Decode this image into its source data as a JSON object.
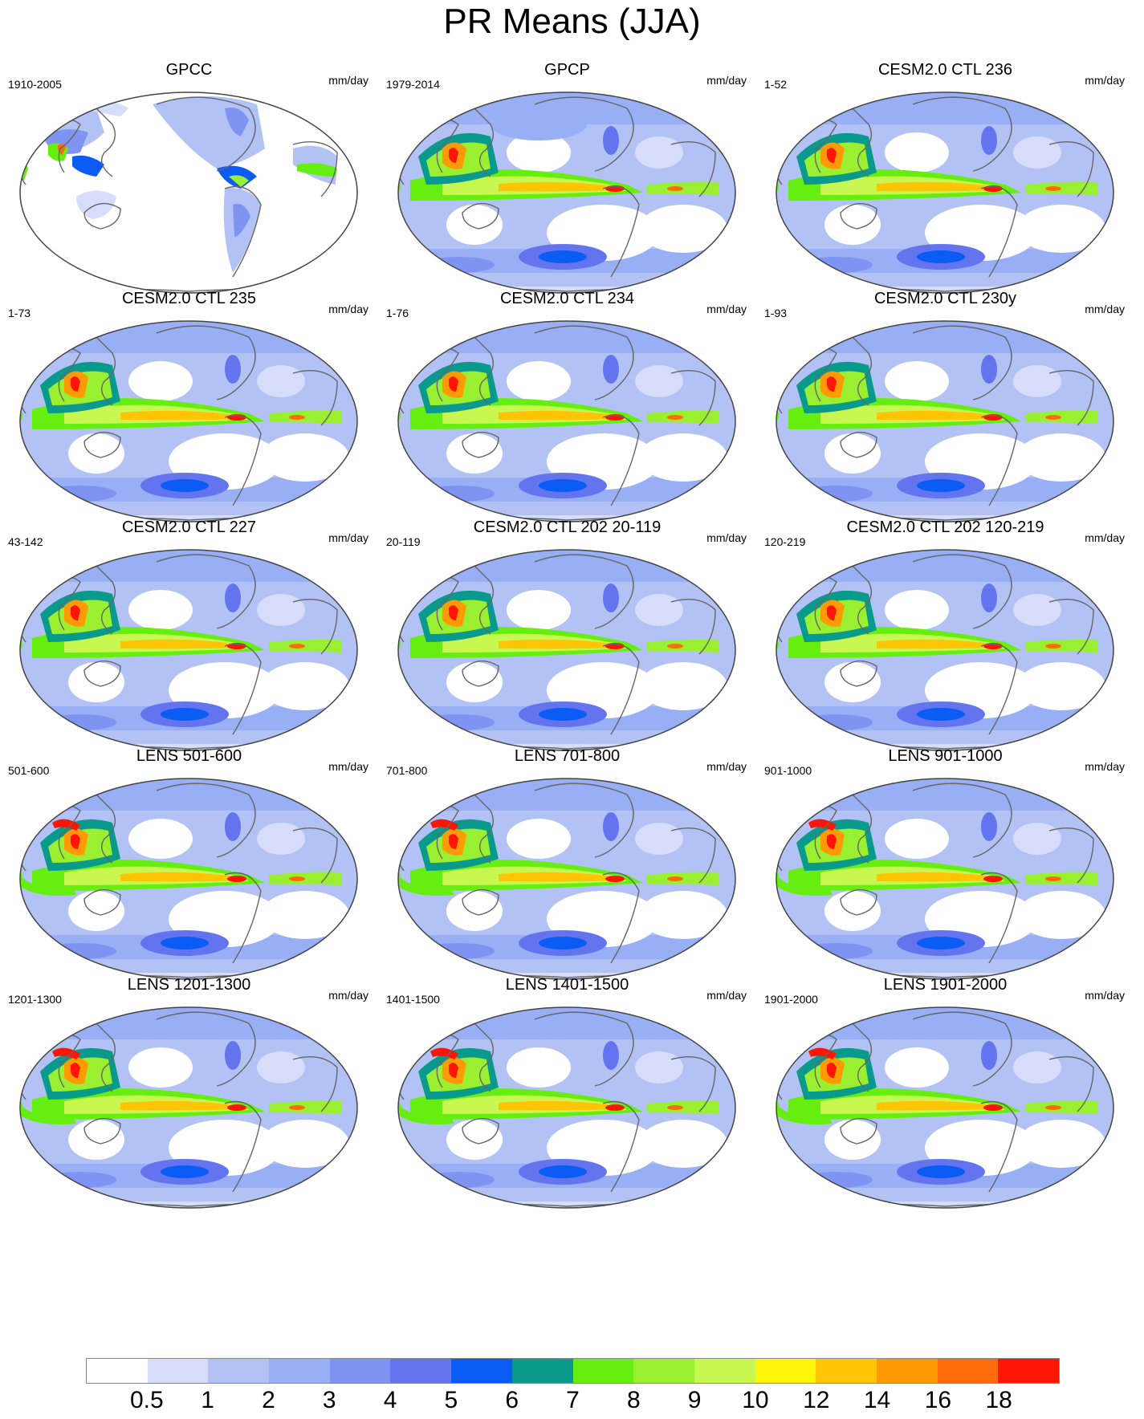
{
  "title": "PR Means (JJA)",
  "panels": [
    {
      "title": "GPCC",
      "period": "1910-2005",
      "units": "mm/day",
      "style": "obs_land"
    },
    {
      "title": "GPCP",
      "period": "1979-2014",
      "units": "mm/day",
      "style": "obs"
    },
    {
      "title": "CESM2.0 CTL 236",
      "period": "1-52",
      "units": "mm/day",
      "style": "cesm"
    },
    {
      "title": "CESM2.0 CTL 235",
      "period": "1-73",
      "units": "mm/day",
      "style": "cesm"
    },
    {
      "title": "CESM2.0 CTL 234",
      "period": "1-76",
      "units": "mm/day",
      "style": "cesm"
    },
    {
      "title": "CESM2.0 CTL 230y",
      "period": "1-93",
      "units": "mm/day",
      "style": "cesm"
    },
    {
      "title": "CESM2.0 CTL 227",
      "period": "43-142",
      "units": "mm/day",
      "style": "cesm"
    },
    {
      "title": "CESM2.0 CTL 202 20-119",
      "period": "20-119",
      "units": "mm/day",
      "style": "cesm"
    },
    {
      "title": "CESM2.0 CTL 202 120-219",
      "period": "120-219",
      "units": "mm/day",
      "style": "cesm"
    },
    {
      "title": "LENS 501-600",
      "period": "501-600",
      "units": "mm/day",
      "style": "lens"
    },
    {
      "title": "LENS 701-800",
      "period": "701-800",
      "units": "mm/day",
      "style": "lens"
    },
    {
      "title": "LENS 901-1000",
      "period": "901-1000",
      "units": "mm/day",
      "style": "lens"
    },
    {
      "title": "LENS 1201-1300",
      "period": "1201-1300",
      "units": "mm/day",
      "style": "lens"
    },
    {
      "title": "LENS 1401-1500",
      "period": "1401-1500",
      "units": "mm/day",
      "style": "lens"
    },
    {
      "title": "LENS 1901-2000",
      "period": "1901-2000",
      "units": "mm/day",
      "style": "lens"
    }
  ],
  "colorbar": {
    "colors": [
      "#ffffff",
      "#d6dcfa",
      "#b3c2f5",
      "#98aef5",
      "#7f94f2",
      "#6474ee",
      "#0a5cf5",
      "#0a9a8c",
      "#66ee10",
      "#9af030",
      "#c8f850",
      "#fff508",
      "#ffc405",
      "#ff9a05",
      "#ff6a0a",
      "#ff1505"
    ],
    "labels": [
      "0.5",
      "1",
      "2",
      "3",
      "4",
      "5",
      "6",
      "7",
      "8",
      "9",
      "10",
      "12",
      "14",
      "16",
      "18"
    ]
  }
}
